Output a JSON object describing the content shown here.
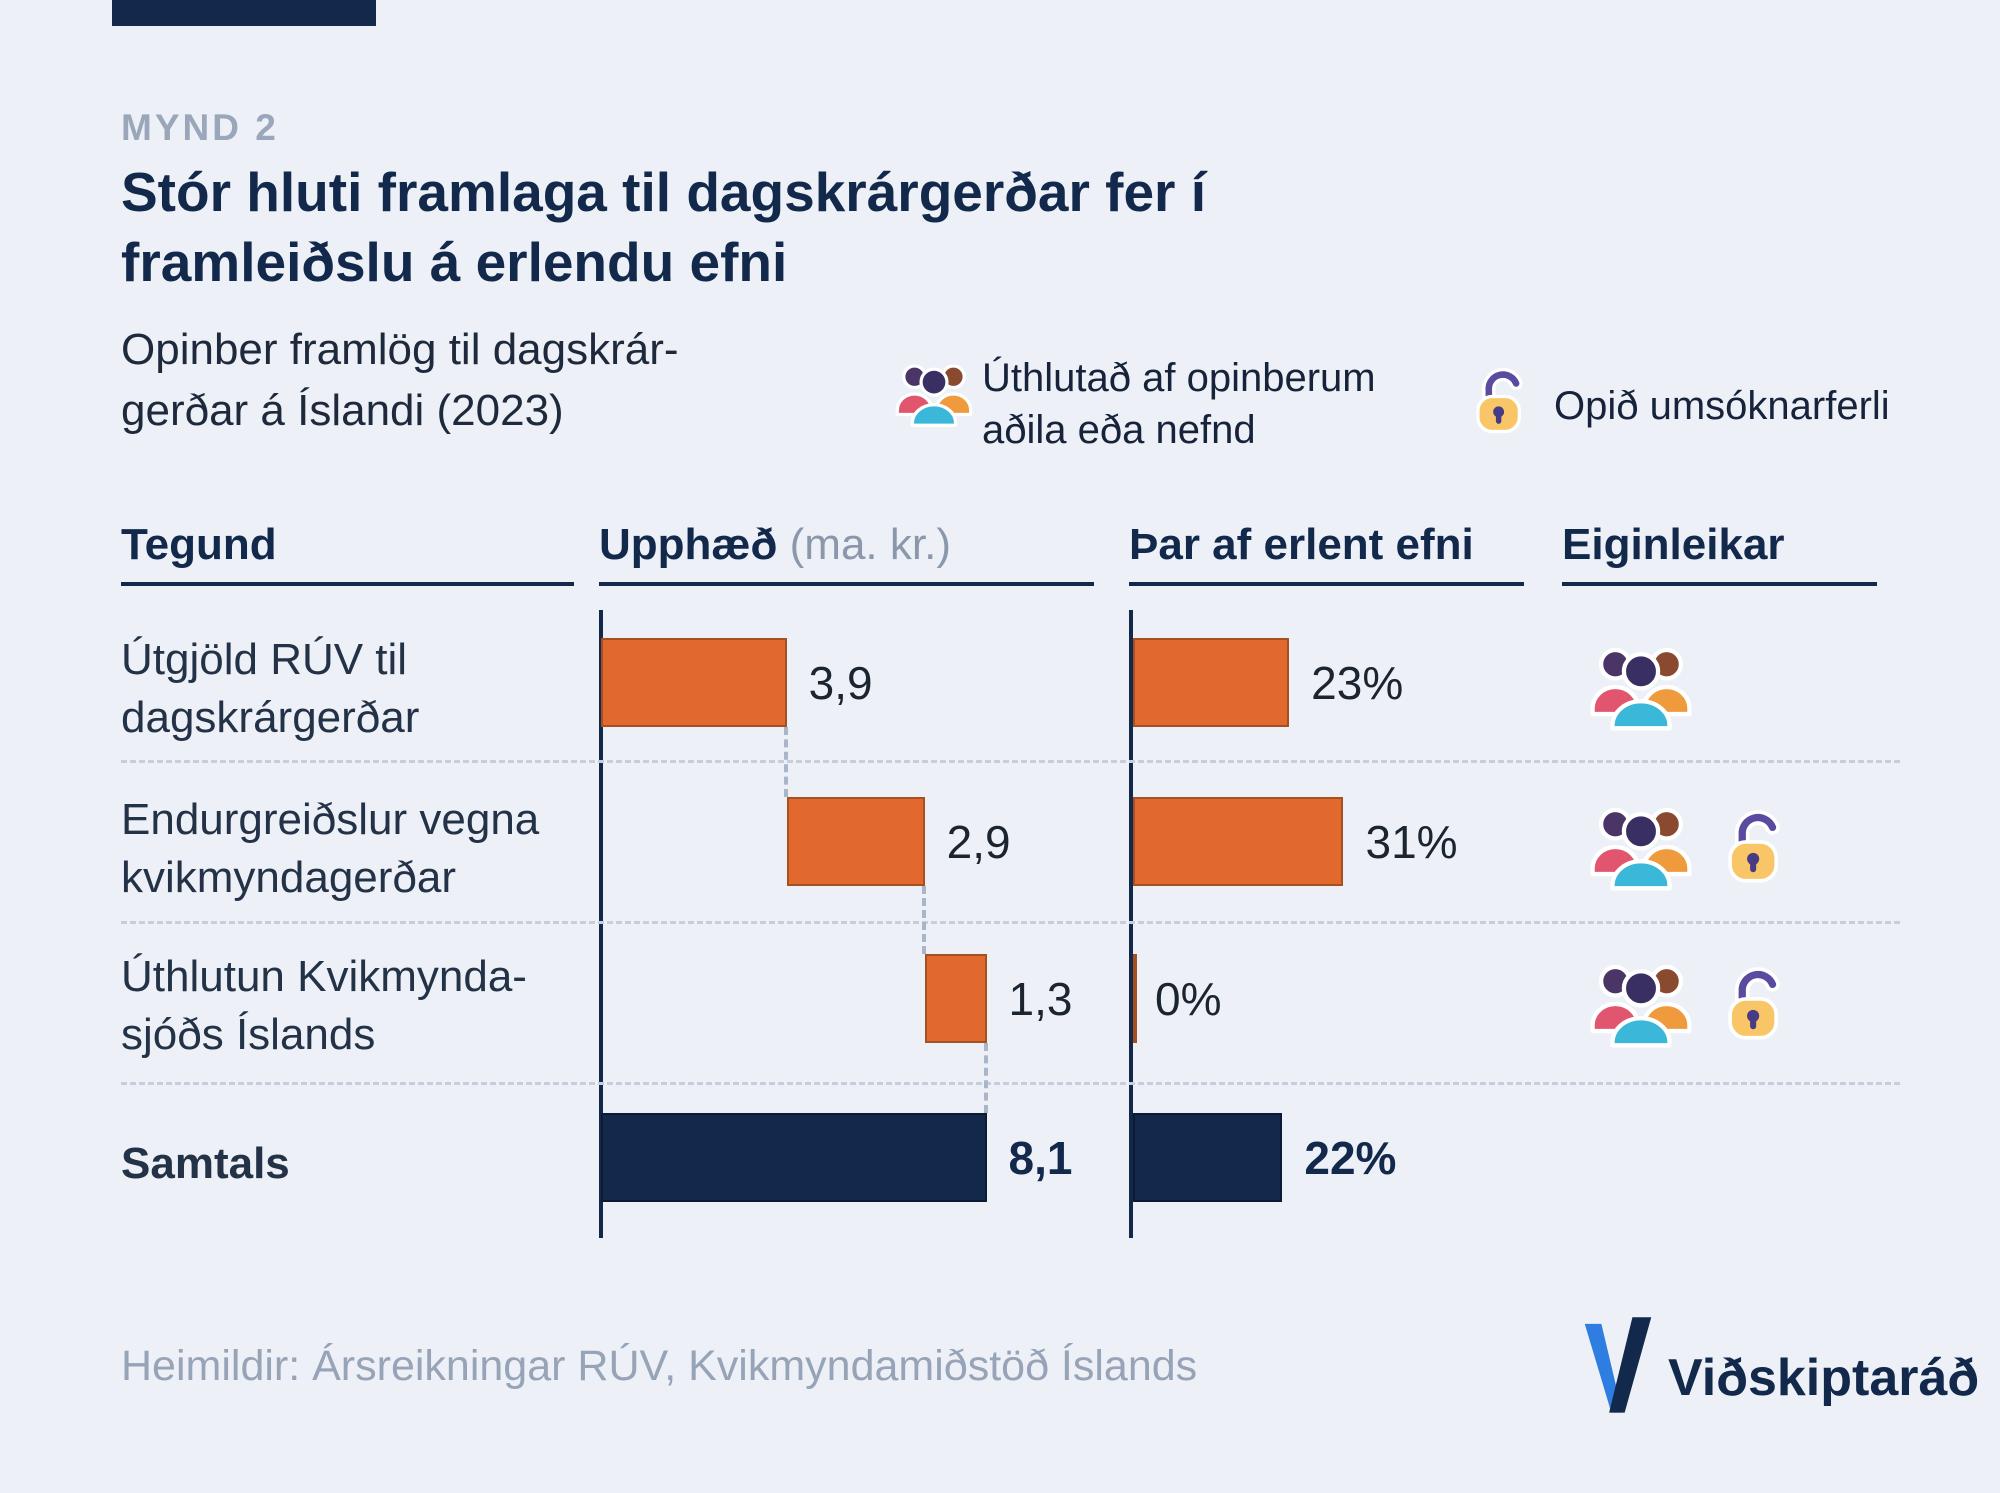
{
  "colors": {
    "background": "#EDF1F7",
    "navy": "#12294B",
    "orange": "#E2692E",
    "muted_gray": "#98A4B8",
    "dashed_gray": "#C5CEDD",
    "accent_blue": "#2E7DE0",
    "lock_yellow": "#F8C666",
    "lock_purple": "#5A4AA0"
  },
  "header": {
    "kicker": "MYND 2",
    "title_line1": "Stór hluti framlaga til dagskrárgerðar fer í",
    "title_line2": "framleiðslu á erlendu efni",
    "subtitle_line1": "Opinber framlög til dagskrár-",
    "subtitle_line2": "gerðar á Íslandi (2023)"
  },
  "legend": {
    "people": {
      "icon": "people-group-icon",
      "label_line1": "Úthlutað af opinberum",
      "label_line2": "aðila eða nefnd"
    },
    "lock": {
      "icon": "open-padlock-icon",
      "label": "Opið umsóknarferli"
    }
  },
  "table": {
    "columns": {
      "tegund": "Tegund",
      "upphaed": "Upphæð",
      "upphaed_unit": "(ma. kr.)",
      "erlent": "Þar af erlent efni",
      "eiginleikar": "Eiginleikar"
    }
  },
  "rows": [
    {
      "label_line1": "Útgjöld RÚV til",
      "label_line2": "dagskrárgerðar",
      "amount": "3,9",
      "foreign": "23%",
      "allocated_by_public_body": true,
      "open_application": false
    },
    {
      "label_line1": "Endurgreiðslur vegna",
      "label_line2": "kvikmyndagerðar",
      "amount": "2,9",
      "foreign": "31%",
      "allocated_by_public_body": true,
      "open_application": true
    },
    {
      "label_line1": "Úthlutun Kvikmynda-",
      "label_line2": "sjóðs Íslands",
      "amount": "1,3",
      "foreign": "0%",
      "allocated_by_public_body": true,
      "open_application": true
    },
    {
      "label": "Samtals",
      "amount": "8,1",
      "foreign": "22%",
      "is_total": true
    }
  ],
  "chart_data": {
    "type": "bar",
    "variant": "waterfall",
    "title": "Stór hluti framlaga til dagskrárgerðar fer í framleiðslu á erlendu efni",
    "subtitle": "Opinber framlög til dagskrárgerðar á Íslandi (2023)",
    "categories": [
      "Útgjöld RÚV til dagskrárgerðar",
      "Endurgreiðslur vegna kvikmyndagerðar",
      "Úthlutun Kvikmyndasjóðs Íslands",
      "Samtals"
    ],
    "series": [
      {
        "name": "Upphæð (ma. kr.)",
        "values": [
          3.9,
          2.9,
          1.3,
          8.1
        ],
        "unit": "ma. kr.",
        "total_index": 3
      },
      {
        "name": "Þar af erlent efni",
        "values": [
          23,
          31,
          0,
          22
        ],
        "unit": "%"
      }
    ],
    "legend_position": "top",
    "grid": false,
    "bar_colors": {
      "default": "#E2692E",
      "total": "#12294B"
    }
  },
  "footer": {
    "source": "Heimildir: Ársreikningar RÚV, Kvikmyndamiðstöð Íslands",
    "brand": "Viðskiptaráð"
  }
}
